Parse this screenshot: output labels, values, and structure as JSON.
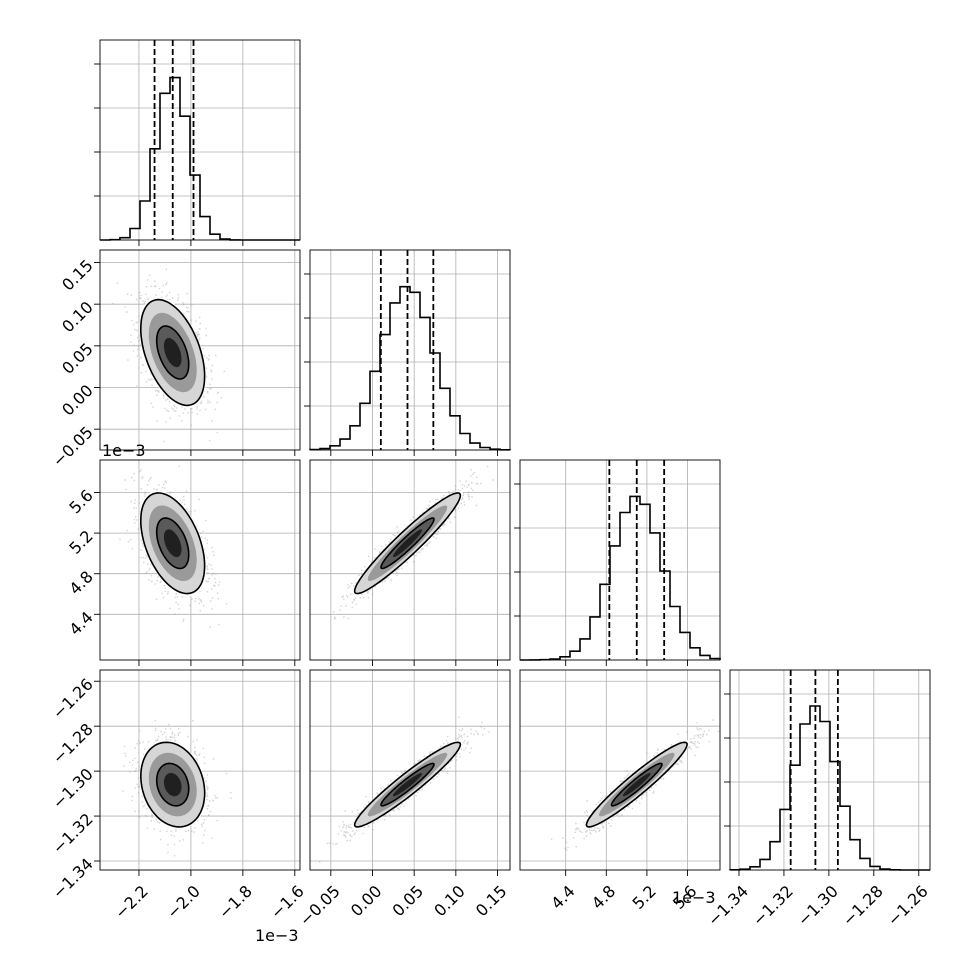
{
  "chart_data": {
    "type": "corner",
    "title": "",
    "parameters": [
      {
        "label": "",
        "range": [
          -2.35,
          -1.58
        ],
        "ticks": [
          -2.2,
          -2.0,
          -1.8,
          -1.6
        ],
        "tick_labels": [
          "−2.2",
          "−2.0",
          "−1.8",
          "−1.6"
        ],
        "offset_text": "1e−3",
        "mean": -2.07,
        "sd": 0.062,
        "quantiles": [
          -2.14,
          -2.07,
          -1.99
        ],
        "hist_peak_fraction": 0.82
      },
      {
        "label": "",
        "range": [
          -0.075,
          0.165
        ],
        "ticks": [
          -0.05,
          0.0,
          0.05,
          0.1,
          0.15
        ],
        "tick_labels": [
          "−0.05",
          "0.00",
          "0.05",
          "0.10",
          "0.15"
        ],
        "offset_text": "",
        "mean": 0.042,
        "sd": 0.032,
        "quantiles": [
          0.01,
          0.042,
          0.073
        ],
        "hist_peak_fraction": 0.82
      },
      {
        "label": "",
        "range": [
          3.95,
          5.92
        ],
        "ticks": [
          4.4,
          4.8,
          5.2,
          5.6
        ],
        "tick_labels": [
          "4.4",
          "4.8",
          "5.2",
          "5.6"
        ],
        "offset_text": "1e−3",
        "mean": 5.1,
        "sd": 0.25,
        "quantiles": [
          4.83,
          5.1,
          5.37
        ],
        "hist_peak_fraction": 0.82
      },
      {
        "label": "",
        "range": [
          -1.344,
          -1.255
        ],
        "ticks": [
          -1.34,
          -1.32,
          -1.3,
          -1.28,
          -1.26
        ],
        "tick_labels": [
          "−1.34",
          "−1.32",
          "−1.30",
          "−1.28",
          "−1.26"
        ],
        "offset_text": "",
        "mean": -1.306,
        "sd": 0.0095,
        "quantiles": [
          -1.317,
          -1.306,
          -1.296
        ],
        "hist_peak_fraction": 0.82
      }
    ],
    "correlations": [
      [
        1,
        -0.45,
        -0.45,
        -0.2
      ],
      [
        -0.45,
        1,
        0.95,
        0.95
      ],
      [
        -0.45,
        0.95,
        1,
        0.95
      ],
      [
        -0.2,
        0.95,
        0.95,
        1
      ]
    ],
    "contour_levels": [
      0.39,
      0.86
    ],
    "grid": true,
    "quantile_lines": "dashed",
    "colors": {
      "points": "#9e9e9e",
      "line": "#000000",
      "grid": "#b0b0b0"
    }
  }
}
